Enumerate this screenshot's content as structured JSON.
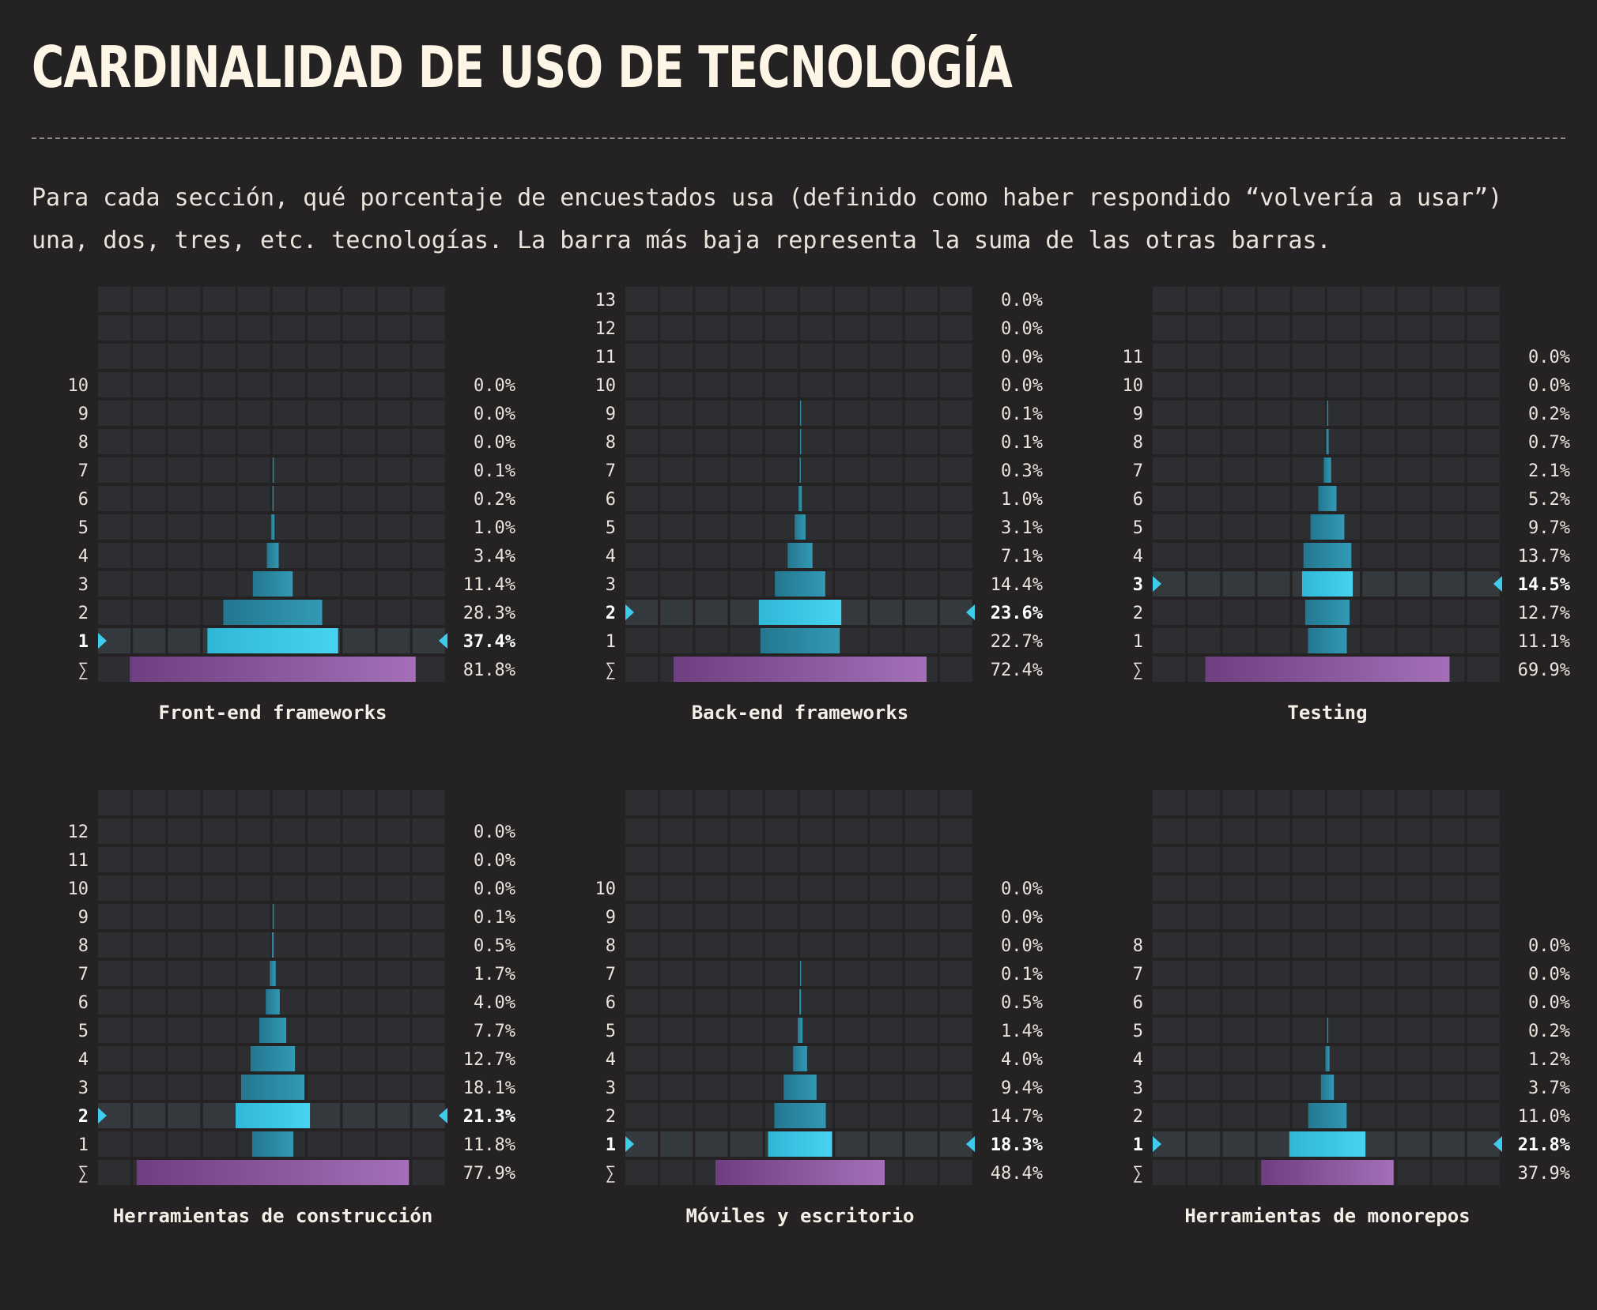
{
  "header": {
    "title": "CARDINALIDAD DE USO DE TECNOLOGÍA",
    "description": "Para cada sección, qué porcentaje de encuestados usa (definido como haber respondido “volvería a usar”) una, dos, tres, etc. tecnologías. La barra más baja representa la suma de las otras barras."
  },
  "colors": {
    "background": "#242223",
    "cell": "#2d2e31",
    "cell_highlight": "#34393d",
    "bar": "#2a8aa6",
    "bar_highlight": "#3ecbec",
    "sum_bar_start": "#6e3f80",
    "sum_bar_end": "#a46fb8",
    "marker": "#3ecbec"
  },
  "chart_data": [
    {
      "type": "bar",
      "title": "Front-end frameworks",
      "categories": [
        "1",
        "2",
        "3",
        "4",
        "5",
        "6",
        "7",
        "8",
        "9",
        "10"
      ],
      "values": [
        37.4,
        28.3,
        11.4,
        3.4,
        1.0,
        0.2,
        0.1,
        0.0,
        0.0,
        0.0
      ],
      "labels": [
        "37.4%",
        "28.3%",
        "11.4%",
        "3.4%",
        "1.0%",
        "0.2%",
        "0.1%",
        "0.0%",
        "0.0%",
        "0.0%"
      ],
      "sum_symbol": "∑",
      "sum": 81.8,
      "sum_label": "81.8%",
      "highlight": "1"
    },
    {
      "type": "bar",
      "title": "Back-end frameworks",
      "categories": [
        "1",
        "2",
        "3",
        "4",
        "5",
        "6",
        "7",
        "8",
        "9",
        "10",
        "11",
        "12",
        "13"
      ],
      "values": [
        22.7,
        23.6,
        14.4,
        7.1,
        3.1,
        1.0,
        0.3,
        0.1,
        0.1,
        0.0,
        0.0,
        0.0,
        0.0
      ],
      "labels": [
        "22.7%",
        "23.6%",
        "14.4%",
        "7.1%",
        "3.1%",
        "1.0%",
        "0.3%",
        "0.1%",
        "0.1%",
        "0.0%",
        "0.0%",
        "0.0%",
        "0.0%"
      ],
      "sum_symbol": "∑",
      "sum": 72.4,
      "sum_label": "72.4%",
      "highlight": "2"
    },
    {
      "type": "bar",
      "title": "Testing",
      "categories": [
        "1",
        "2",
        "3",
        "4",
        "5",
        "6",
        "7",
        "8",
        "9",
        "10",
        "11"
      ],
      "values": [
        11.1,
        12.7,
        14.5,
        13.7,
        9.7,
        5.2,
        2.1,
        0.7,
        0.2,
        0.0,
        0.0
      ],
      "labels": [
        "11.1%",
        "12.7%",
        "14.5%",
        "13.7%",
        "9.7%",
        "5.2%",
        "2.1%",
        "0.7%",
        "0.2%",
        "0.0%",
        "0.0%"
      ],
      "sum_symbol": "∑",
      "sum": 69.9,
      "sum_label": "69.9%",
      "highlight": "3"
    },
    {
      "type": "bar",
      "title": "Herramientas de construcción",
      "categories": [
        "1",
        "2",
        "3",
        "4",
        "5",
        "6",
        "7",
        "8",
        "9",
        "10",
        "11",
        "12"
      ],
      "values": [
        11.8,
        21.3,
        18.1,
        12.7,
        7.7,
        4.0,
        1.7,
        0.5,
        0.1,
        0.0,
        0.0,
        0.0
      ],
      "labels": [
        "11.8%",
        "21.3%",
        "18.1%",
        "12.7%",
        "7.7%",
        "4.0%",
        "1.7%",
        "0.5%",
        "0.1%",
        "0.0%",
        "0.0%",
        "0.0%"
      ],
      "sum_symbol": "∑",
      "sum": 77.9,
      "sum_label": "77.9%",
      "highlight": "2"
    },
    {
      "type": "bar",
      "title": "Móviles y escritorio",
      "categories": [
        "1",
        "2",
        "3",
        "4",
        "5",
        "6",
        "7",
        "8",
        "9",
        "10"
      ],
      "values": [
        18.3,
        14.7,
        9.4,
        4.0,
        1.4,
        0.5,
        0.1,
        0.0,
        0.0,
        0.0
      ],
      "labels": [
        "18.3%",
        "14.7%",
        "9.4%",
        "4.0%",
        "1.4%",
        "0.5%",
        "0.1%",
        "0.0%",
        "0.0%",
        "0.0%"
      ],
      "sum_symbol": "∑",
      "sum": 48.4,
      "sum_label": "48.4%",
      "highlight": "1"
    },
    {
      "type": "bar",
      "title": "Herramientas de monorepos",
      "categories": [
        "1",
        "2",
        "3",
        "4",
        "5",
        "6",
        "7",
        "8"
      ],
      "values": [
        21.8,
        11.0,
        3.7,
        1.2,
        0.2,
        0.0,
        0.0,
        0.0
      ],
      "labels": [
        "21.8%",
        "11.0%",
        "3.7%",
        "1.2%",
        "0.2%",
        "0.0%",
        "0.0%",
        "0.0%"
      ],
      "sum_symbol": "∑",
      "sum": 37.9,
      "sum_label": "37.9%",
      "highlight": "1"
    }
  ]
}
